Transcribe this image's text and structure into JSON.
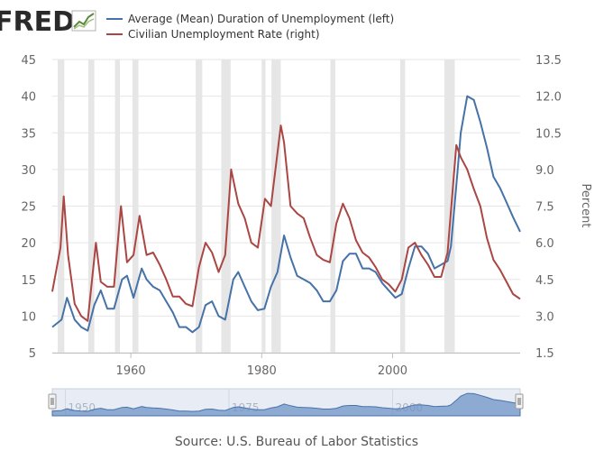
{
  "logo": {
    "text": "FRED"
  },
  "source": "Source: U.S. Bureau of Labor Statistics",
  "colors": {
    "left_series": "#4572a7",
    "right_series": "#aa4643",
    "recession": "#e6e6e6",
    "grid": "#e6e6e6"
  },
  "navigator": {
    "tick_labels": [
      "1950",
      "1975",
      "2000"
    ],
    "tick_years": [
      1950,
      1975,
      2000
    ]
  },
  "chart_data": {
    "type": "line",
    "legend_position": "top-left",
    "grid": true,
    "x_axis": {
      "type": "date",
      "range": [
        "1948-01",
        "2019-07"
      ],
      "tick_labels": [
        "1960",
        "1980",
        "2000"
      ],
      "tick_years": [
        1960,
        1980,
        2000
      ]
    },
    "y_left": {
      "range": [
        5,
        45
      ],
      "ticks": [
        "5",
        "10",
        "15",
        "20",
        "25",
        "30",
        "35",
        "40",
        "45"
      ],
      "label": ""
    },
    "y_right": {
      "range": [
        1.5,
        13.5
      ],
      "ticks": [
        "1.5",
        "3.0",
        "4.5",
        "6.0",
        "7.5",
        "9.0",
        "10.5",
        "12.0",
        "13.5"
      ],
      "label": "Percent"
    },
    "recessions": [
      [
        "1948-11",
        "1949-10"
      ],
      [
        "1953-07",
        "1954-05"
      ],
      [
        "1957-08",
        "1958-04"
      ],
      [
        "1960-04",
        "1961-02"
      ],
      [
        "1969-12",
        "1970-11"
      ],
      [
        "1973-11",
        "1975-03"
      ],
      [
        "1980-01",
        "1980-07"
      ],
      [
        "1981-07",
        "1982-11"
      ],
      [
        "1990-07",
        "1991-03"
      ],
      [
        "2001-03",
        "2001-11"
      ],
      [
        "2007-12",
        "2009-06"
      ]
    ],
    "series": [
      {
        "name": "Average (Mean) Duration of Unemployment (left)",
        "axis": "left",
        "x": [
          "1948-01",
          "1949-06",
          "1950-04",
          "1951-06",
          "1952-06",
          "1953-06",
          "1954-06",
          "1955-06",
          "1956-06",
          "1957-06",
          "1958-09",
          "1959-06",
          "1960-06",
          "1961-09",
          "1962-06",
          "1963-06",
          "1964-06",
          "1965-06",
          "1966-06",
          "1967-06",
          "1968-06",
          "1969-06",
          "1970-06",
          "1971-06",
          "1972-06",
          "1973-06",
          "1974-06",
          "1975-09",
          "1976-06",
          "1977-06",
          "1978-06",
          "1979-06",
          "1980-06",
          "1981-06",
          "1982-06",
          "1983-06",
          "1984-06",
          "1985-06",
          "1986-06",
          "1987-06",
          "1988-06",
          "1989-06",
          "1990-06",
          "1991-06",
          "1992-06",
          "1993-06",
          "1994-06",
          "1995-06",
          "1996-06",
          "1997-06",
          "1998-06",
          "1999-06",
          "2000-06",
          "2001-06",
          "2002-06",
          "2003-06",
          "2004-06",
          "2005-06",
          "2006-06",
          "2007-06",
          "2008-06",
          "2008-12",
          "2009-06",
          "2009-12",
          "2010-06",
          "2011-06",
          "2012-06",
          "2013-06",
          "2014-06",
          "2015-06",
          "2016-06",
          "2017-06",
          "2018-06",
          "2019-07"
        ],
        "values": [
          8.5,
          9.5,
          12.5,
          9.5,
          8.5,
          8.0,
          11.5,
          13.5,
          11.0,
          11.0,
          15.0,
          15.5,
          12.5,
          16.5,
          15.0,
          14.0,
          13.5,
          12.0,
          10.5,
          8.5,
          8.5,
          7.8,
          8.5,
          11.5,
          12.0,
          10.0,
          9.5,
          15.0,
          16.0,
          14.0,
          12.0,
          10.8,
          11.0,
          14.0,
          16.0,
          21.0,
          18.0,
          15.5,
          15.0,
          14.5,
          13.5,
          12.0,
          12.0,
          13.5,
          17.5,
          18.5,
          18.5,
          16.5,
          16.5,
          16.0,
          14.5,
          13.5,
          12.5,
          13.0,
          16.5,
          19.5,
          19.5,
          18.5,
          16.5,
          17.0,
          17.5,
          19.5,
          24.5,
          29.5,
          35.0,
          40.0,
          39.5,
          36.5,
          33.0,
          29.0,
          27.5,
          25.5,
          23.5,
          21.5
        ]
      },
      {
        "name": "Civilian Unemployment Rate (right)",
        "axis": "right",
        "x": [
          "1948-01",
          "1949-04",
          "1949-10",
          "1950-06",
          "1951-06",
          "1952-06",
          "1953-06",
          "1954-09",
          "1955-06",
          "1956-06",
          "1957-06",
          "1958-07",
          "1959-06",
          "1960-06",
          "1961-05",
          "1962-06",
          "1963-06",
          "1964-06",
          "1965-06",
          "1966-06",
          "1967-06",
          "1968-06",
          "1969-06",
          "1970-06",
          "1971-06",
          "1972-06",
          "1973-06",
          "1974-06",
          "1975-05",
          "1976-06",
          "1977-06",
          "1978-06",
          "1979-06",
          "1980-07",
          "1981-06",
          "1982-12",
          "1983-06",
          "1984-06",
          "1985-06",
          "1986-06",
          "1987-06",
          "1988-06",
          "1989-06",
          "1990-06",
          "1991-06",
          "1992-06",
          "1993-06",
          "1994-06",
          "1995-06",
          "1996-06",
          "1997-06",
          "1998-06",
          "1999-06",
          "2000-06",
          "2001-06",
          "2002-06",
          "2003-06",
          "2004-06",
          "2005-06",
          "2006-06",
          "2007-06",
          "2008-06",
          "2009-10",
          "2010-06",
          "2011-06",
          "2012-06",
          "2013-06",
          "2014-06",
          "2015-06",
          "2016-06",
          "2017-06",
          "2018-06",
          "2019-07"
        ],
        "values": [
          4.0,
          5.8,
          7.9,
          5.5,
          3.5,
          3.0,
          2.8,
          6.0,
          4.4,
          4.2,
          4.2,
          7.5,
          5.2,
          5.5,
          7.1,
          5.5,
          5.6,
          5.1,
          4.5,
          3.8,
          3.8,
          3.5,
          3.4,
          5.0,
          6.0,
          5.6,
          4.8,
          5.5,
          9.0,
          7.6,
          7.0,
          6.0,
          5.8,
          7.8,
          7.5,
          10.8,
          10.1,
          7.5,
          7.2,
          7.0,
          6.2,
          5.5,
          5.3,
          5.2,
          6.8,
          7.6,
          7.0,
          6.1,
          5.6,
          5.4,
          5.0,
          4.5,
          4.3,
          4.0,
          4.5,
          5.8,
          6.0,
          5.5,
          5.1,
          4.6,
          4.6,
          5.6,
          10.0,
          9.5,
          9.0,
          8.2,
          7.5,
          6.2,
          5.3,
          4.9,
          4.4,
          3.9,
          3.7
        ]
      }
    ]
  }
}
